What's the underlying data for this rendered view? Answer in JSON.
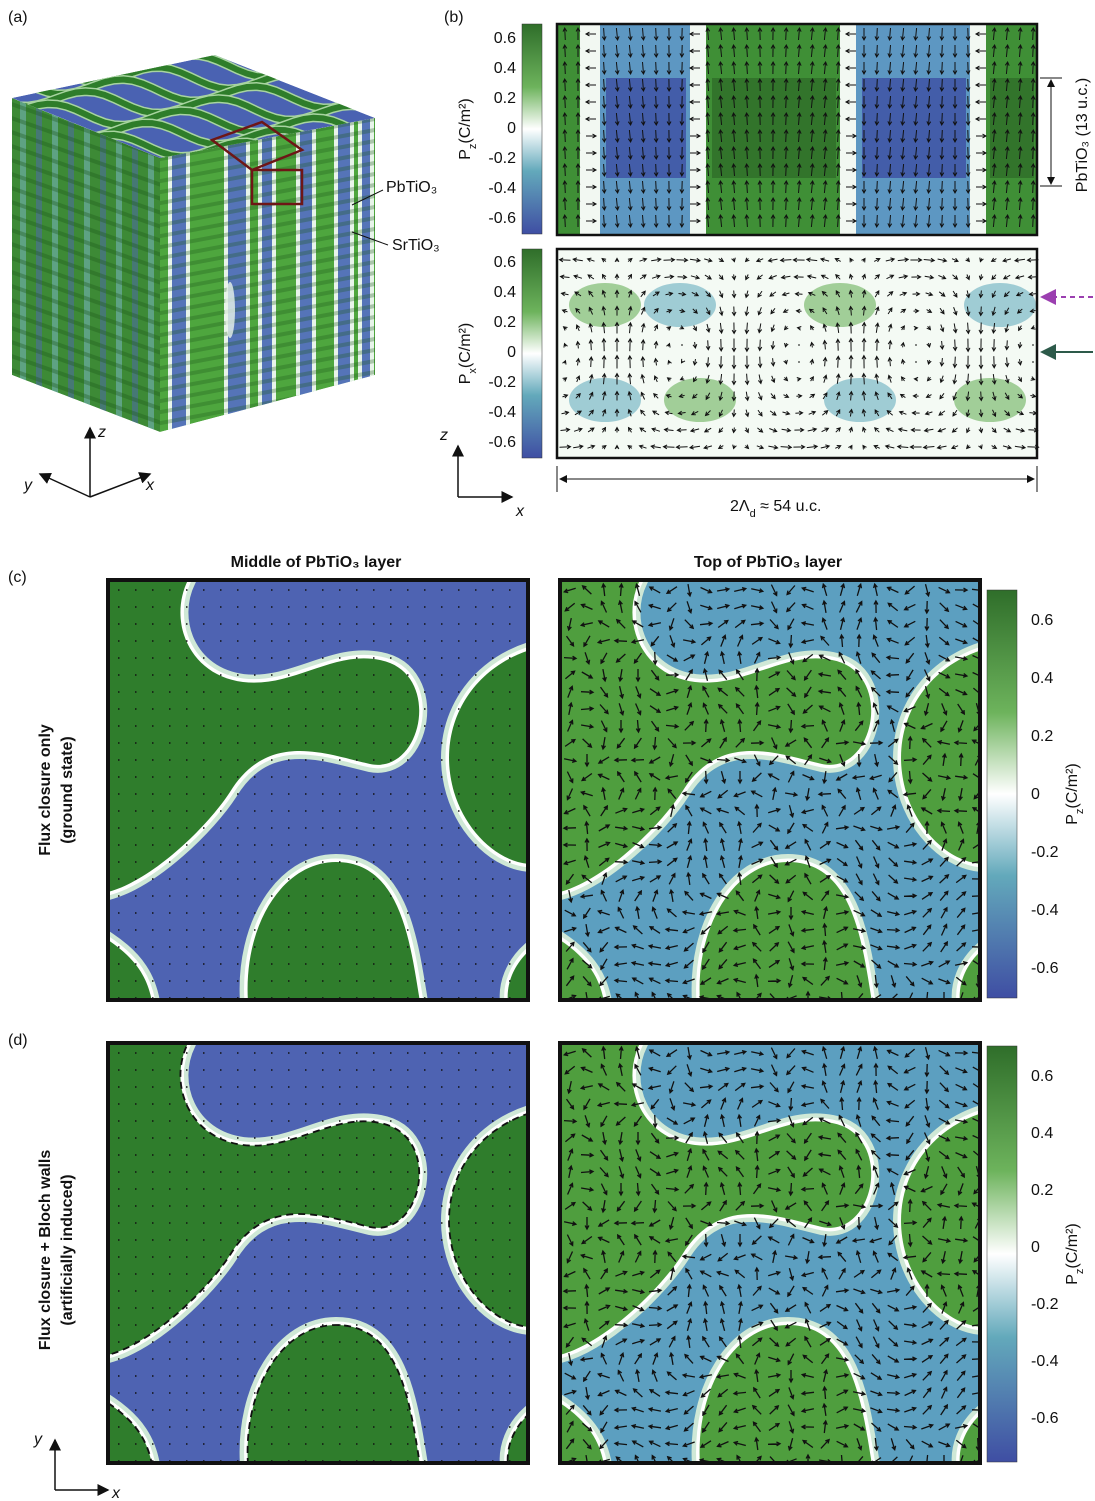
{
  "panel_a": {
    "label": "(a)",
    "layer_top": "PbTiO₃",
    "layer_bottom": "SrTiO₃",
    "axes": {
      "z": "z",
      "y": "y",
      "x": "x"
    }
  },
  "panel_b": {
    "label": "(b)",
    "top_colorbar": {
      "symbol": "P",
      "subscript": "z",
      "unit": "(C/m²)",
      "ticks": [
        "0.6",
        "0.4",
        "0.2",
        "0",
        "-0.2",
        "-0.4",
        "-0.6"
      ]
    },
    "bottom_colorbar": {
      "symbol": "P",
      "subscript": "x",
      "unit": "(C/m²)",
      "ticks": [
        "0.6",
        "0.4",
        "0.2",
        "0",
        "-0.2",
        "-0.4",
        "-0.6"
      ]
    },
    "thickness_label": "PbTiO₃  (13 u.c.)",
    "period": {
      "prefix": "2Λ",
      "subscript": "d",
      "suffix": " ≈ 54 u.c."
    },
    "axes": {
      "z": "z",
      "x": "x"
    }
  },
  "column_titles": [
    "Middle of PbTiO₃ layer",
    "Top of PbTiO₃ layer"
  ],
  "panel_c": {
    "label": "(c)",
    "row_title": [
      "Flux closure only",
      "(ground state)"
    ],
    "colorbar": {
      "symbol": "P",
      "subscript": "z",
      "unit": "(C/m²)",
      "ticks": [
        "0.6",
        "0.4",
        "0.2",
        "0",
        "-0.2",
        "-0.4",
        "-0.6"
      ]
    }
  },
  "panel_d": {
    "label": "(d)",
    "row_title": [
      "Flux closure + Bloch walls",
      "(artificially induced)"
    ],
    "colorbar": {
      "symbol": "P",
      "subscript": "z",
      "unit": "(C/m²)",
      "ticks": [
        "0.6",
        "0.4",
        "0.2",
        "0",
        "-0.2",
        "-0.4",
        "-0.6"
      ]
    },
    "axes": {
      "y": "y",
      "x": "x"
    }
  }
}
